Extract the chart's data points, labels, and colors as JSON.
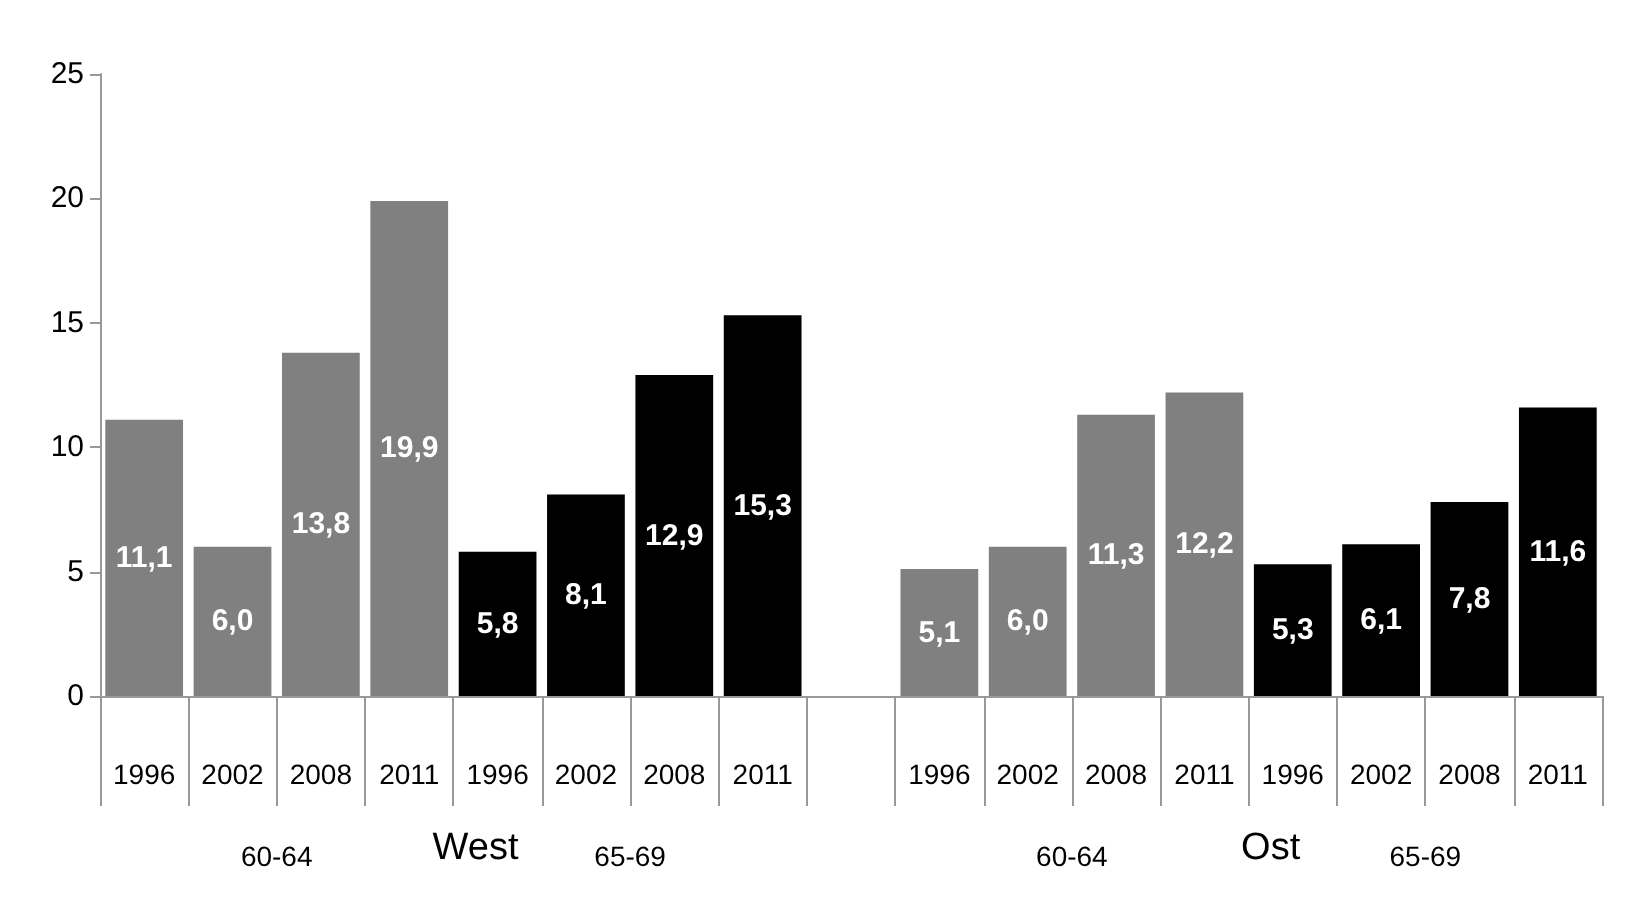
{
  "chart_data": {
    "type": "bar",
    "categories": [
      "1996",
      "2002",
      "2008",
      "2011",
      "1996",
      "2002",
      "2008",
      "2011",
      null,
      "1996",
      "2002",
      "2008",
      "2011",
      "1996",
      "2002",
      "2008",
      "2011"
    ],
    "values": [
      11.1,
      6.0,
      13.8,
      19.9,
      5.8,
      8.1,
      12.9,
      15.3,
      null,
      5.1,
      6.0,
      11.3,
      12.2,
      5.3,
      6.1,
      7.8,
      11.6
    ],
    "colors": [
      "#808080",
      "#808080",
      "#808080",
      "#808080",
      "#000000",
      "#000000",
      "#000000",
      "#000000",
      "#808080",
      "#808080",
      "#808080",
      "#808080",
      "#808080",
      "#000000",
      "#000000",
      "#000000",
      "#000000"
    ],
    "value_labels": [
      "11,1",
      "6,0",
      "13,8",
      "19,9",
      "5,8",
      "8,1",
      "12,9",
      "15,3",
      null,
      "5,1",
      "6,0",
      "11,3",
      "12,2",
      "5,3",
      "6,1",
      "7,8",
      "11,6"
    ],
    "ylim": [
      0,
      25
    ],
    "yticks": [
      0,
      5,
      10,
      15,
      20,
      25
    ],
    "grid": false,
    "annotations": [
      "60-64",
      "West",
      "65-69",
      "60-64",
      "Ost",
      "65-69"
    ]
  }
}
